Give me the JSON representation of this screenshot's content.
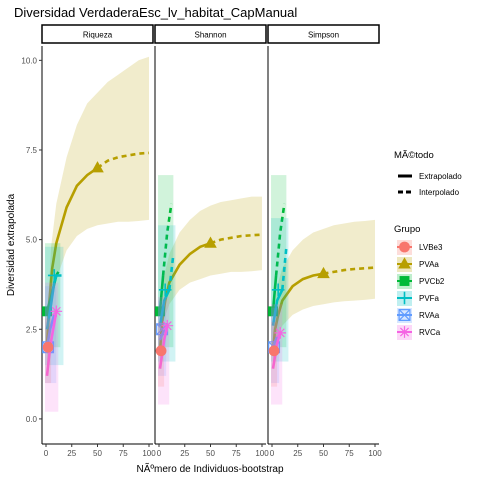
{
  "chart_data": {
    "type": "line",
    "title": "Diversidad VerdaderaEsc_lv_habitat_CapManual",
    "xlabel": "NÃºmero de Individuos-bootstrap",
    "ylabel": "Diversidad extrapolada",
    "xlim": [
      0,
      100
    ],
    "ylim": [
      -0.7,
      10.4
    ],
    "x_ticks": [
      0,
      25,
      50,
      75,
      100
    ],
    "x_tick_labels": [
      "0",
      "25",
      "50",
      "75",
      "100"
    ],
    "y_ticks": [
      0,
      2.5,
      5,
      7.5,
      10
    ],
    "y_tick_labels": [
      "0.0",
      "2.5",
      "5.0",
      "7.5",
      "10.0"
    ],
    "grid": false,
    "legend_placement": "right",
    "facets": [
      "Riqueza",
      "Shannon",
      "Simpson"
    ],
    "method_legend": {
      "title": "MÃ©todo",
      "items": [
        {
          "label": "Extrapolado",
          "dash": "solid"
        },
        {
          "label": "Interpolado",
          "dash": "dashed"
        }
      ]
    },
    "group_legend": {
      "title": "Grupo",
      "items": [
        {
          "label": "LVBe3",
          "color": "#F8766D",
          "shape": "circle"
        },
        {
          "label": "PVAa",
          "color": "#B79F00",
          "shape": "triangle"
        },
        {
          "label": "PVCb2",
          "color": "#00BA38",
          "shape": "square"
        },
        {
          "label": "PVFa",
          "color": "#00BFC4",
          "shape": "plus"
        },
        {
          "label": "RVAa",
          "color": "#619CFF",
          "shape": "boxx"
        },
        {
          "label": "RVCa",
          "color": "#F564E3",
          "shape": "star"
        }
      ]
    },
    "panels": [
      {
        "name": "Riqueza",
        "series": [
          {
            "group": "PVAa",
            "color": "#B79F00",
            "shape": "triangle",
            "extrapolated": [
              [
                1,
                2.0
              ],
              [
                3,
                3.2
              ],
              [
                6,
                4.2
              ],
              [
                10,
                4.9
              ],
              [
                20,
                5.9
              ],
              [
                30,
                6.5
              ],
              [
                40,
                6.8
              ],
              [
                50,
                7.0
              ]
            ],
            "interpolated": [
              [
                50,
                7.0
              ],
              [
                60,
                7.2
              ],
              [
                70,
                7.3
              ],
              [
                80,
                7.35
              ],
              [
                90,
                7.4
              ],
              [
                100,
                7.42
              ]
            ],
            "ci_upper": [
              [
                1,
                2.6
              ],
              [
                5,
                4.8
              ],
              [
                10,
                6.0
              ],
              [
                20,
                7.3
              ],
              [
                30,
                8.2
              ],
              [
                40,
                8.8
              ],
              [
                50,
                9.1
              ],
              [
                60,
                9.4
              ],
              [
                70,
                9.6
              ],
              [
                80,
                9.8
              ],
              [
                90,
                10.0
              ],
              [
                100,
                10.1
              ]
            ],
            "ci_lower": [
              [
                1,
                1.4
              ],
              [
                5,
                3.0
              ],
              [
                10,
                3.9
              ],
              [
                20,
                4.7
              ],
              [
                30,
                5.1
              ],
              [
                40,
                5.3
              ],
              [
                50,
                5.4
              ],
              [
                60,
                5.45
              ],
              [
                70,
                5.5
              ],
              [
                80,
                5.5
              ],
              [
                90,
                5.52
              ],
              [
                100,
                5.55
              ]
            ],
            "observed": [
              50,
              7.0
            ]
          },
          {
            "group": "PVCb2",
            "color": "#00BA38",
            "shape": "square",
            "extrapolated": [
              [
                1,
                3.0
              ],
              [
                5,
                3.4
              ],
              [
                10,
                4.0
              ],
              [
                12,
                4.1
              ]
            ],
            "interpolated": [],
            "observed": [
              1,
              3.0
            ]
          },
          {
            "group": "PVFa",
            "color": "#00BFC4",
            "shape": "plus",
            "extrapolated": [
              [
                1,
                2.5
              ],
              [
                5,
                3.2
              ],
              [
                8,
                3.8
              ],
              [
                10,
                4.0
              ],
              [
                15,
                4.0
              ]
            ],
            "interpolated": [],
            "observed": [
              8,
              4.0
            ]
          },
          {
            "group": "RVAa",
            "color": "#619CFF",
            "shape": "boxx",
            "extrapolated": [
              [
                1,
                2.0
              ],
              [
                4,
                2.5
              ],
              [
                8,
                2.9
              ]
            ],
            "interpolated": [],
            "observed": [
              2,
              2.0
            ]
          },
          {
            "group": "RVCa",
            "color": "#F564E3",
            "shape": "star",
            "extrapolated": [
              [
                1,
                1.2
              ],
              [
                4,
                2.0
              ],
              [
                10,
                3.0
              ]
            ],
            "interpolated": [],
            "observed": [
              10,
              3.0
            ]
          },
          {
            "group": "LVBe3",
            "color": "#F8766D",
            "shape": "circle",
            "extrapolated": [
              [
                1,
                2.0
              ],
              [
                3,
                2.0
              ]
            ],
            "interpolated": [],
            "observed": [
              2,
              2.0
            ]
          }
        ]
      },
      {
        "name": "Shannon",
        "series": [
          {
            "group": "PVAa",
            "color": "#B79F00",
            "shape": "triangle",
            "extrapolated": [
              [
                1,
                1.9
              ],
              [
                3,
                2.7
              ],
              [
                6,
                3.3
              ],
              [
                10,
                3.8
              ],
              [
                20,
                4.3
              ],
              [
                30,
                4.6
              ],
              [
                40,
                4.8
              ],
              [
                50,
                4.9
              ]
            ],
            "interpolated": [
              [
                50,
                4.9
              ],
              [
                60,
                5.0
              ],
              [
                70,
                5.05
              ],
              [
                80,
                5.1
              ],
              [
                90,
                5.12
              ],
              [
                100,
                5.14
              ]
            ],
            "ci_upper": [
              [
                1,
                2.4
              ],
              [
                5,
                4.0
              ],
              [
                10,
                4.6
              ],
              [
                20,
                5.2
              ],
              [
                30,
                5.55
              ],
              [
                40,
                5.8
              ],
              [
                50,
                5.95
              ],
              [
                60,
                6.05
              ],
              [
                70,
                6.1
              ],
              [
                80,
                6.15
              ],
              [
                90,
                6.2
              ],
              [
                100,
                6.2
              ]
            ],
            "ci_lower": [
              [
                1,
                1.4
              ],
              [
                5,
                2.8
              ],
              [
                10,
                3.2
              ],
              [
                20,
                3.6
              ],
              [
                30,
                3.8
              ],
              [
                40,
                3.9
              ],
              [
                50,
                4.0
              ],
              [
                60,
                4.05
              ],
              [
                70,
                4.1
              ],
              [
                80,
                4.1
              ],
              [
                90,
                4.12
              ],
              [
                100,
                4.15
              ]
            ],
            "observed": [
              50,
              4.9
            ]
          },
          {
            "group": "PVCb2",
            "color": "#00BA38",
            "shape": "square",
            "extrapolated": [
              [
                1,
                3.0
              ],
              [
                4,
                4.0
              ]
            ],
            "interpolated": [
              [
                4,
                4.0
              ],
              [
                8,
                5.2
              ],
              [
                12,
                6.0
              ]
            ],
            "observed": [
              1,
              3.0
            ]
          },
          {
            "group": "PVFa",
            "color": "#00BFC4",
            "shape": "plus",
            "extrapolated": [
              [
                1,
                2.6
              ],
              [
                5,
                3.3
              ],
              [
                10,
                3.6
              ]
            ],
            "interpolated": [
              [
                10,
                3.6
              ],
              [
                14,
                4.6
              ]
            ],
            "observed": [
              6,
              3.6
            ]
          },
          {
            "group": "RVAa",
            "color": "#619CFF",
            "shape": "boxx",
            "extrapolated": [
              [
                1,
                2.2
              ],
              [
                5,
                2.5
              ]
            ],
            "interpolated": [],
            "observed": [
              3,
              2.5
            ]
          },
          {
            "group": "RVCa",
            "color": "#F564E3",
            "shape": "star",
            "extrapolated": [
              [
                1,
                1.4
              ],
              [
                5,
                2.2
              ],
              [
                8,
                2.6
              ]
            ],
            "interpolated": [],
            "observed": [
              8,
              2.6
            ]
          },
          {
            "group": "LVBe3",
            "color": "#F8766D",
            "shape": "circle",
            "extrapolated": [
              [
                1,
                1.9
              ],
              [
                3,
                1.9
              ]
            ],
            "interpolated": [],
            "observed": [
              2,
              1.9
            ]
          }
        ]
      },
      {
        "name": "Simpson",
        "series": [
          {
            "group": "PVAa",
            "color": "#B79F00",
            "shape": "triangle",
            "extrapolated": [
              [
                1,
                1.9
              ],
              [
                3,
                2.5
              ],
              [
                6,
                2.9
              ],
              [
                10,
                3.3
              ],
              [
                20,
                3.7
              ],
              [
                30,
                3.9
              ],
              [
                40,
                4.0
              ],
              [
                50,
                4.05
              ]
            ],
            "interpolated": [
              [
                50,
                4.05
              ],
              [
                60,
                4.1
              ],
              [
                70,
                4.15
              ],
              [
                80,
                4.18
              ],
              [
                90,
                4.2
              ],
              [
                100,
                4.22
              ]
            ],
            "ci_upper": [
              [
                1,
                2.4
              ],
              [
                5,
                3.7
              ],
              [
                10,
                4.2
              ],
              [
                20,
                4.7
              ],
              [
                30,
                5.0
              ],
              [
                40,
                5.2
              ],
              [
                50,
                5.3
              ],
              [
                60,
                5.4
              ],
              [
                70,
                5.45
              ],
              [
                80,
                5.5
              ],
              [
                90,
                5.52
              ],
              [
                100,
                5.55
              ]
            ],
            "ci_lower": [
              [
                1,
                1.4
              ],
              [
                5,
                2.3
              ],
              [
                10,
                2.6
              ],
              [
                20,
                2.9
              ],
              [
                30,
                3.05
              ],
              [
                40,
                3.15
              ],
              [
                50,
                3.2
              ],
              [
                60,
                3.25
              ],
              [
                70,
                3.28
              ],
              [
                80,
                3.3
              ],
              [
                90,
                3.32
              ],
              [
                100,
                3.35
              ]
            ],
            "observed": [
              50,
              4.05
            ]
          },
          {
            "group": "PVCb2",
            "color": "#00BA38",
            "shape": "square",
            "extrapolated": [
              [
                1,
                3.0
              ],
              [
                4,
                4.0
              ]
            ],
            "interpolated": [
              [
                4,
                4.0
              ],
              [
                8,
                5.2
              ],
              [
                12,
                6.0
              ]
            ],
            "observed": [
              1,
              3.0
            ]
          },
          {
            "group": "PVFa",
            "color": "#00BFC4",
            "shape": "plus",
            "extrapolated": [
              [
                1,
                2.6
              ],
              [
                5,
                3.3
              ],
              [
                10,
                3.6
              ]
            ],
            "interpolated": [
              [
                10,
                3.6
              ],
              [
                14,
                4.8
              ]
            ],
            "observed": [
              6,
              3.6
            ]
          },
          {
            "group": "RVAa",
            "color": "#619CFF",
            "shape": "boxx",
            "extrapolated": [
              [
                1,
                2.0
              ],
              [
                5,
                2.3
              ]
            ],
            "interpolated": [],
            "observed": [
              2,
              2.0
            ]
          },
          {
            "group": "RVCa",
            "color": "#F564E3",
            "shape": "star",
            "extrapolated": [
              [
                1,
                1.4
              ],
              [
                5,
                2.1
              ],
              [
                8,
                2.4
              ]
            ],
            "interpolated": [],
            "observed": [
              8,
              2.4
            ]
          },
          {
            "group": "LVBe3",
            "color": "#F8766D",
            "shape": "circle",
            "extrapolated": [
              [
                1,
                1.9
              ],
              [
                3,
                1.9
              ]
            ],
            "interpolated": [],
            "observed": [
              2,
              1.9
            ]
          }
        ]
      }
    ]
  }
}
